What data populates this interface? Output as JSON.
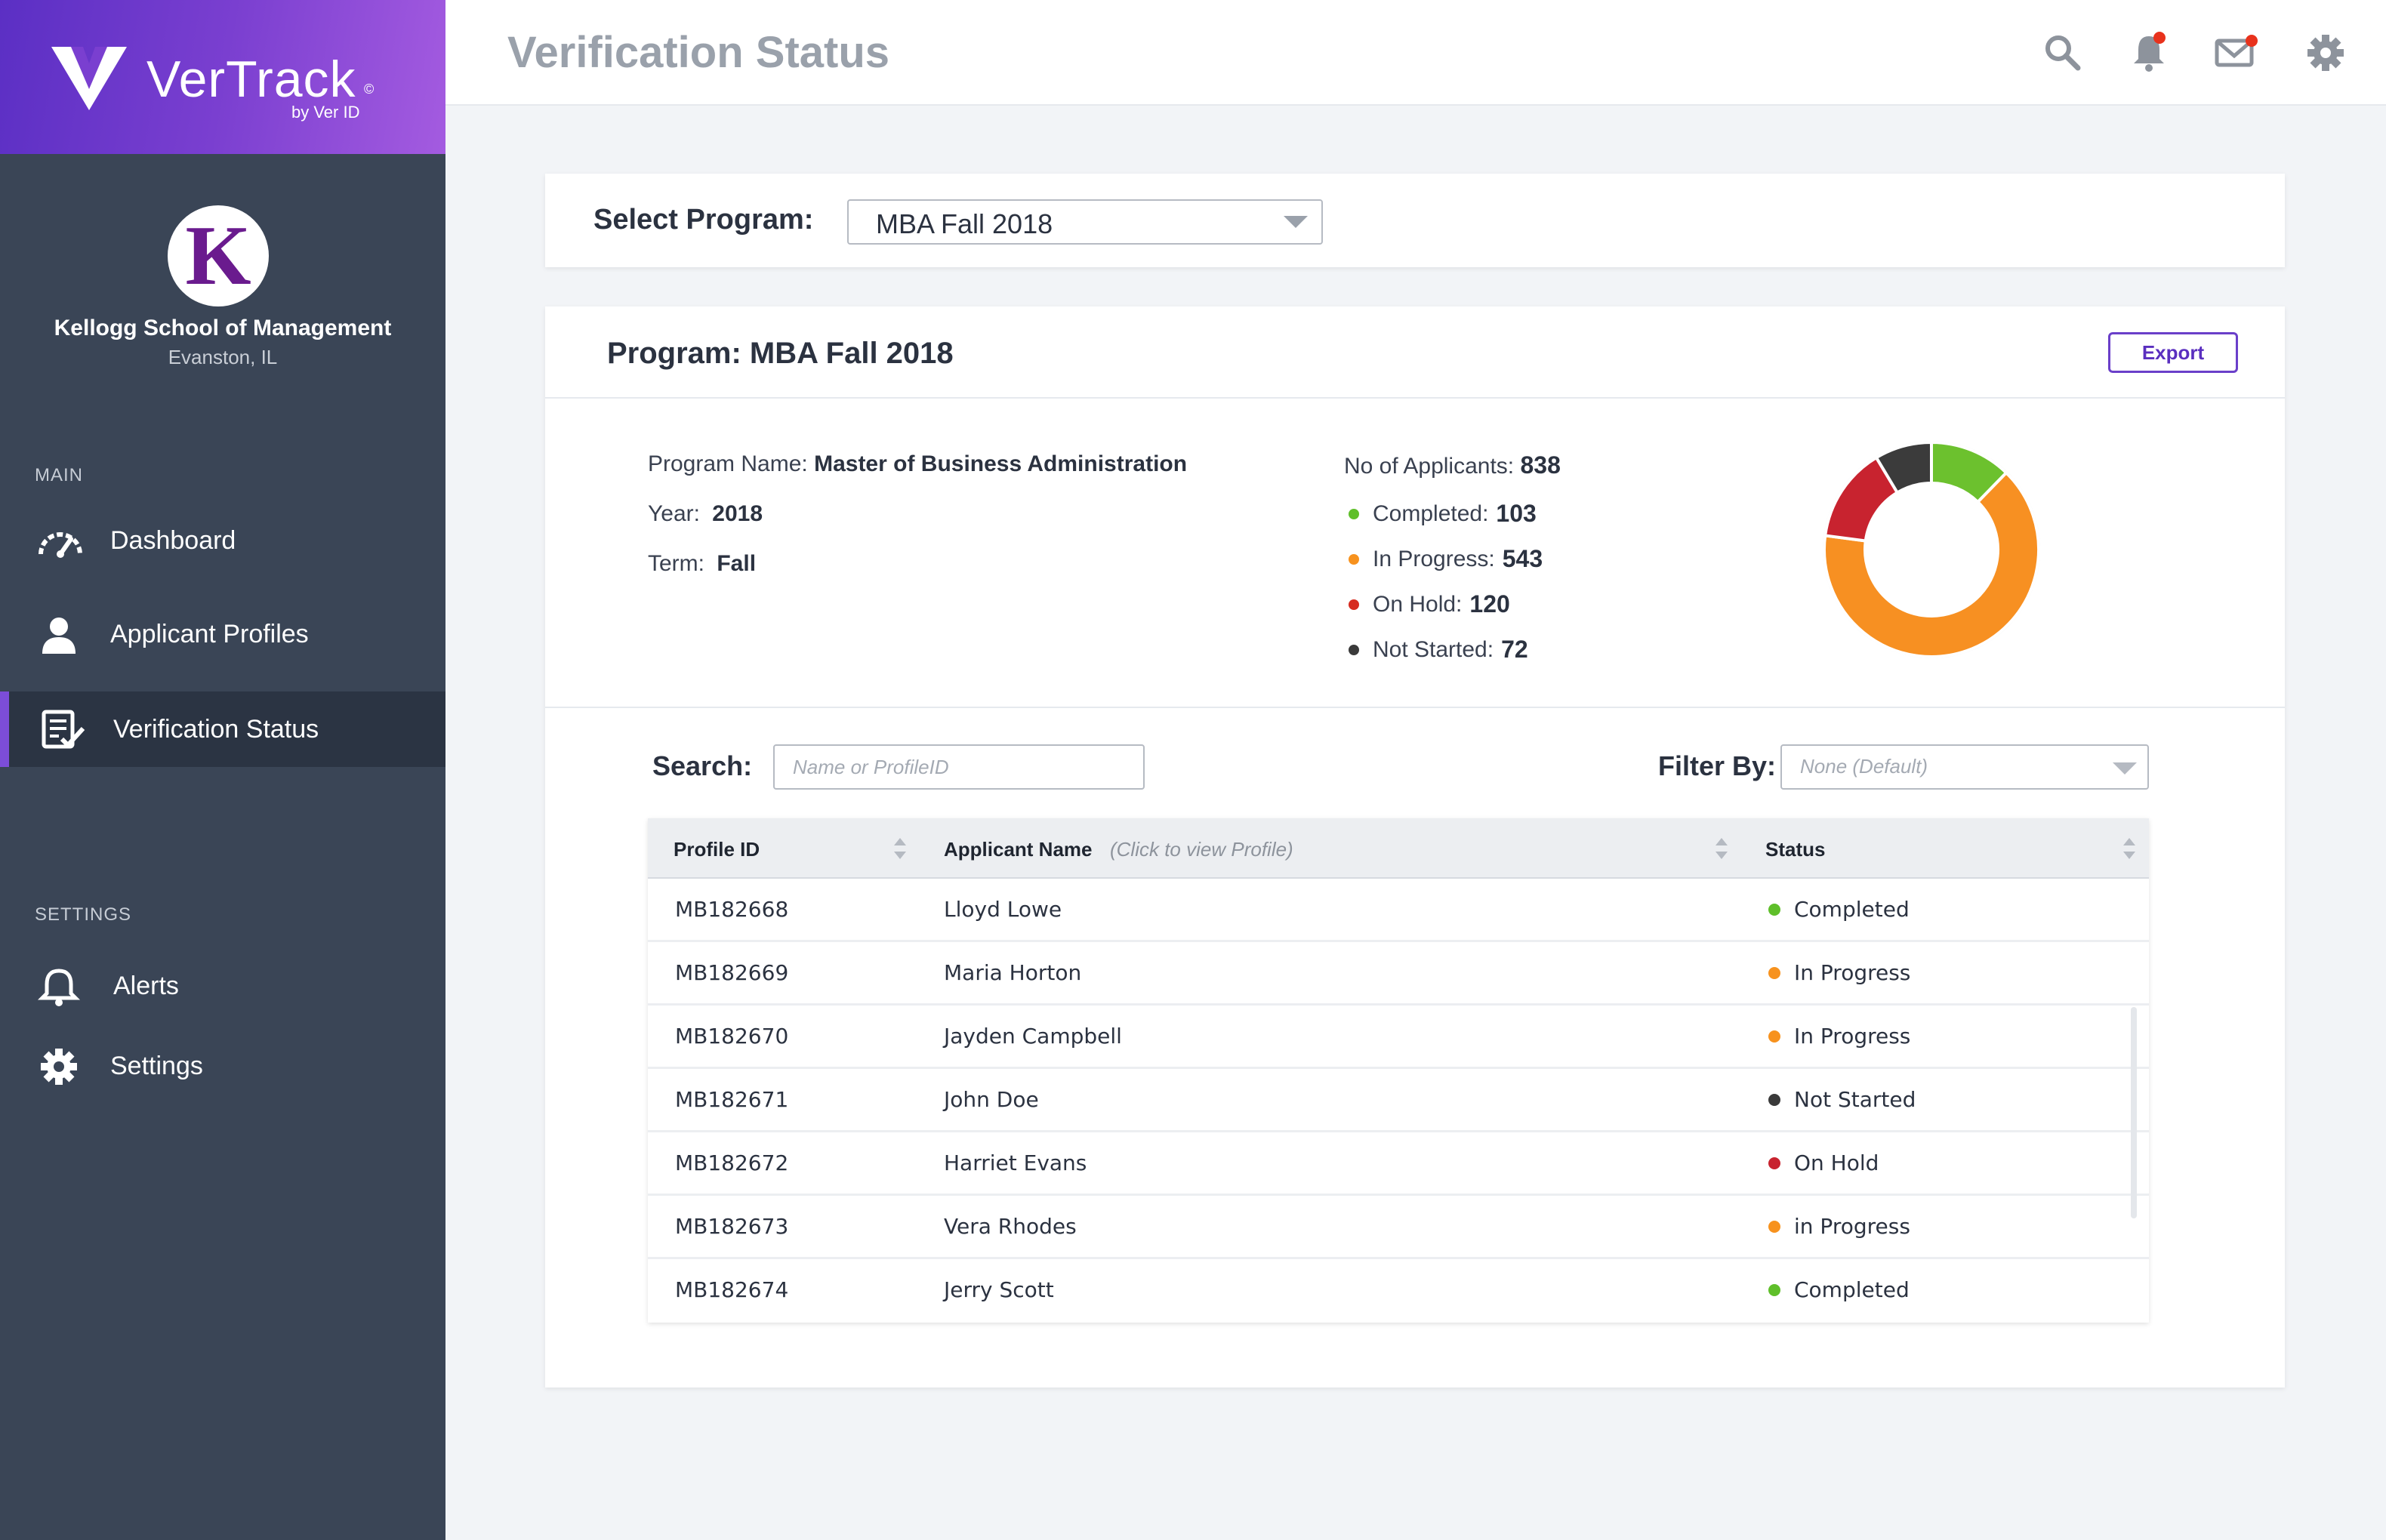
{
  "brand": {
    "name": "VerTrack",
    "copyright": "©",
    "sub": "by Ver ID"
  },
  "org": {
    "initial": "K",
    "name": "Kellogg School of Management",
    "location": "Evanston, IL"
  },
  "sidebar": {
    "main_label": "MAIN",
    "settings_label": "SETTINGS",
    "items": [
      {
        "label": "Dashboard",
        "icon": "speedometer-icon"
      },
      {
        "label": "Applicant Profiles",
        "icon": "user-icon"
      },
      {
        "label": "Verification Status",
        "icon": "checklist-icon",
        "active": true
      },
      {
        "label": "Alerts",
        "icon": "bell-icon"
      },
      {
        "label": "Settings",
        "icon": "gear-icon"
      }
    ]
  },
  "header": {
    "title": "Verification Status"
  },
  "program_select": {
    "label": "Select Program:",
    "value": "MBA Fall 2018"
  },
  "program": {
    "heading": "Program: MBA Fall 2018",
    "export_label": "Export",
    "name_label": "Program Name:",
    "name_value": "Master of Business Administration",
    "year_label": "Year:",
    "year_value": "2018",
    "term_label": "Term:",
    "term_value": "Fall",
    "applicants_label": "No of Applicants:",
    "applicants_value": "838",
    "stats": [
      {
        "label": "Completed:",
        "value": "103",
        "color": "#5fbf2a"
      },
      {
        "label": "In Progress:",
        "value": "543",
        "color": "#f7921e"
      },
      {
        "label": "On Hold:",
        "value": "120",
        "color": "#d62b1f"
      },
      {
        "label": "Not Started:",
        "value": "72",
        "color": "#3a3a3a"
      }
    ]
  },
  "chart_data": {
    "type": "pie",
    "categories": [
      "Completed",
      "In Progress",
      "On Hold",
      "Not Started"
    ],
    "values": [
      103,
      543,
      120,
      72
    ],
    "colors": [
      "#6cc12e",
      "#f79022",
      "#c8232f",
      "#3b3b3b"
    ]
  },
  "filters": {
    "search_label": "Search:",
    "search_placeholder": "Name or ProfileID",
    "filter_label": "Filter By:",
    "filter_value": "None (Default)"
  },
  "table": {
    "columns": {
      "id": "Profile ID",
      "name": "Applicant Name",
      "name_hint": "(Click to view Profile)",
      "status": "Status"
    },
    "rows": [
      {
        "id": "MB182668",
        "name": "Lloyd Lowe",
        "status": "Completed",
        "color": "#5fbf2a"
      },
      {
        "id": "MB182669",
        "name": "Maria Horton",
        "status": "In Progress",
        "color": "#f7921e"
      },
      {
        "id": "MB182670",
        "name": "Jayden Campbell",
        "status": "In Progress",
        "color": "#f7921e"
      },
      {
        "id": "MB182671",
        "name": "John Doe",
        "status": "Not Started",
        "color": "#3a3a3a"
      },
      {
        "id": "MB182672",
        "name": "Harriet Evans",
        "status": "On Hold",
        "color": "#c8232f"
      },
      {
        "id": "MB182673",
        "name": "Vera Rhodes",
        "status": "in Progress",
        "color": "#f7921e"
      },
      {
        "id": "MB182674",
        "name": "Jerry Scott",
        "status": "Completed",
        "color": "#5fbf2a"
      }
    ]
  }
}
